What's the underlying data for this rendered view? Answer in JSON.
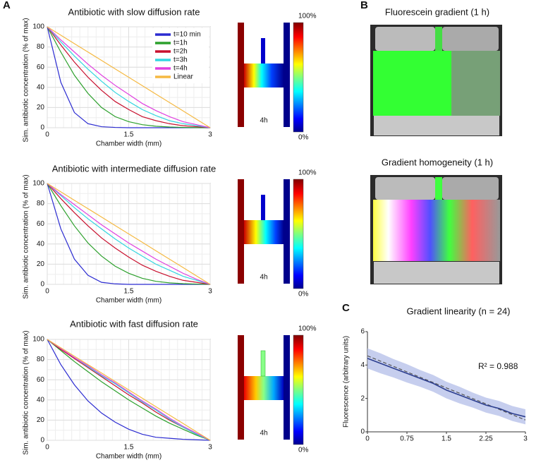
{
  "chart_data": [
    {
      "type": "line",
      "panel_label": "A",
      "title": "Antibiotic with slow diffusion rate",
      "xlabel": "Chamber width (mm)",
      "ylabel": "Sim. antibiotic concentration (% of max)",
      "x": [
        0,
        0.25,
        0.5,
        0.75,
        1,
        1.25,
        1.5,
        1.75,
        2,
        2.25,
        2.5,
        2.75,
        3
      ],
      "xlim": [
        0,
        3
      ],
      "xticks": [
        0,
        1.5,
        3
      ],
      "ylim": [
        0,
        100
      ],
      "yticks": [
        0,
        20,
        40,
        60,
        80,
        100
      ],
      "grid": true,
      "legend": "upper right",
      "inset_label": "4h",
      "colorbar_labels": [
        "100%",
        "0%"
      ],
      "series": [
        {
          "name": "t=10 min",
          "color": "#2b2bd1",
          "values": [
            100,
            45,
            15,
            4,
            1,
            0.3,
            0,
            0,
            0,
            0,
            0,
            0,
            0
          ]
        },
        {
          "name": "t=1h",
          "color": "#2ca02c",
          "values": [
            100,
            75,
            52,
            34,
            20,
            11,
            6,
            3,
            1.5,
            0.7,
            0.3,
            0.1,
            0
          ]
        },
        {
          "name": "t=2h",
          "color": "#c8102e",
          "values": [
            100,
            82,
            65,
            50,
            37,
            26,
            18,
            11,
            7,
            4,
            2,
            1,
            0
          ]
        },
        {
          "name": "t=3h",
          "color": "#33d6e0",
          "values": [
            100,
            85,
            71,
            58,
            46,
            35,
            26,
            18,
            12,
            7,
            4,
            2,
            0
          ]
        },
        {
          "name": "t=4h",
          "color": "#e040e0",
          "values": [
            100,
            87,
            75,
            63,
            52,
            42,
            33,
            24,
            17,
            11,
            6,
            3,
            0
          ]
        },
        {
          "name": "Linear",
          "color": "#f5b942",
          "values": [
            100,
            91.7,
            83.3,
            75,
            66.7,
            58.3,
            50,
            41.7,
            33.3,
            25,
            16.7,
            8.3,
            0
          ]
        }
      ]
    },
    {
      "type": "line",
      "title": "Antibiotic with intermediate diffusion rate",
      "xlabel": "Chamber width (mm)",
      "ylabel": "Sim. antibiotic concentration (% of max)",
      "x": [
        0,
        0.25,
        0.5,
        0.75,
        1,
        1.25,
        1.5,
        1.75,
        2,
        2.25,
        2.5,
        2.75,
        3
      ],
      "xlim": [
        0,
        3
      ],
      "xticks": [
        0,
        1.5,
        3
      ],
      "ylim": [
        0,
        100
      ],
      "yticks": [
        0,
        20,
        40,
        60,
        80,
        100
      ],
      "grid": true,
      "inset_label": "4h",
      "colorbar_labels": [
        "100%",
        "0%"
      ],
      "series": [
        {
          "color": "#2b2bd1",
          "values": [
            100,
            55,
            25,
            9,
            2,
            0.5,
            0,
            0,
            0,
            0,
            0,
            0,
            0
          ]
        },
        {
          "color": "#2ca02c",
          "values": [
            100,
            78,
            58,
            41,
            28,
            18,
            11,
            6,
            3,
            1.5,
            0.7,
            0.3,
            0
          ]
        },
        {
          "color": "#c8102e",
          "values": [
            100,
            85,
            71,
            58,
            46,
            36,
            27,
            19,
            13,
            8,
            4,
            2,
            0
          ]
        },
        {
          "color": "#33d6e0",
          "values": [
            100,
            88,
            76,
            65,
            55,
            45,
            36,
            28,
            20,
            14,
            8,
            4,
            0
          ]
        },
        {
          "color": "#e040e0",
          "values": [
            100,
            89,
            79,
            69,
            59,
            50,
            41,
            33,
            25,
            18,
            11,
            5,
            0
          ]
        },
        {
          "color": "#f5b942",
          "values": [
            100,
            91.7,
            83.3,
            75,
            66.7,
            58.3,
            50,
            41.7,
            33.3,
            25,
            16.7,
            8.3,
            0
          ]
        }
      ]
    },
    {
      "type": "line",
      "title": "Antibiotic with fast diffusion rate",
      "xlabel": "Chamber width (mm)",
      "ylabel": "Sim. antibiotic concentration (% of max)",
      "x": [
        0,
        0.25,
        0.5,
        0.75,
        1,
        1.25,
        1.5,
        1.75,
        2,
        2.25,
        2.5,
        2.75,
        3
      ],
      "xlim": [
        0,
        3
      ],
      "xticks": [
        0,
        1.5,
        3
      ],
      "ylim": [
        0,
        100
      ],
      "yticks": [
        0,
        20,
        40,
        60,
        80,
        100
      ],
      "grid": true,
      "inset_label": "4h",
      "colorbar_labels": [
        "100%",
        "0%"
      ],
      "series": [
        {
          "color": "#2b2bd1",
          "values": [
            100,
            75,
            55,
            39,
            27,
            18,
            11,
            6,
            3,
            2,
            1,
            0.5,
            0
          ]
        },
        {
          "color": "#2ca02c",
          "values": [
            100,
            89,
            78,
            68,
            58,
            49,
            40,
            32,
            24,
            17,
            11,
            5,
            0
          ]
        },
        {
          "color": "#c8102e",
          "values": [
            100,
            90,
            81,
            72,
            63,
            54,
            45,
            37,
            28,
            20,
            13,
            6,
            0
          ]
        },
        {
          "color": "#33d6e0",
          "values": [
            100,
            91,
            82,
            73,
            64,
            56,
            47,
            38,
            30,
            21,
            13,
            6,
            0
          ]
        },
        {
          "color": "#e040e0",
          "values": [
            100,
            91,
            82,
            74,
            65,
            57,
            48,
            39,
            31,
            22,
            14,
            7,
            0
          ]
        },
        {
          "color": "#f5b942",
          "values": [
            100,
            91.7,
            83.3,
            75,
            66.7,
            58.3,
            50,
            41.7,
            33.3,
            25,
            16.7,
            8.3,
            0
          ]
        }
      ]
    },
    {
      "type": "band",
      "panel_label": "C",
      "title": "Gradient linearity (n = 24)",
      "ylabel": "Fluorescence (arbitrary units)",
      "annotation": "R² = 0.988",
      "x": [
        0,
        0.25,
        0.5,
        0.75,
        1,
        1.25,
        1.5,
        1.75,
        2,
        2.25,
        2.5,
        2.75,
        3
      ],
      "xlim": [
        0,
        3
      ],
      "xticks": [
        0,
        0.75,
        1.5,
        2.25,
        3
      ],
      "ylim": [
        0,
        6
      ],
      "yticks": [
        0,
        2,
        4,
        6
      ],
      "grid": false,
      "color": "#2c3e8f",
      "values": [
        4.4,
        4.1,
        3.8,
        3.5,
        3.2,
        2.9,
        2.5,
        2.2,
        1.9,
        1.6,
        1.4,
        1.1,
        0.9
      ],
      "errors": [
        0.6,
        0.6,
        0.55,
        0.55,
        0.5,
        0.5,
        0.5,
        0.5,
        0.45,
        0.45,
        0.45,
        0.45,
        0.45
      ],
      "fit_values": [
        4.55,
        4.23,
        3.91,
        3.59,
        3.27,
        2.95,
        2.63,
        2.31,
        1.99,
        1.67,
        1.35,
        1.03,
        0.71
      ]
    }
  ],
  "panel_b": {
    "label": "B",
    "images": [
      {
        "title": "Fluorescein gradient (1 h)"
      },
      {
        "title": "Gradient homogeneity (1 h)"
      }
    ]
  }
}
